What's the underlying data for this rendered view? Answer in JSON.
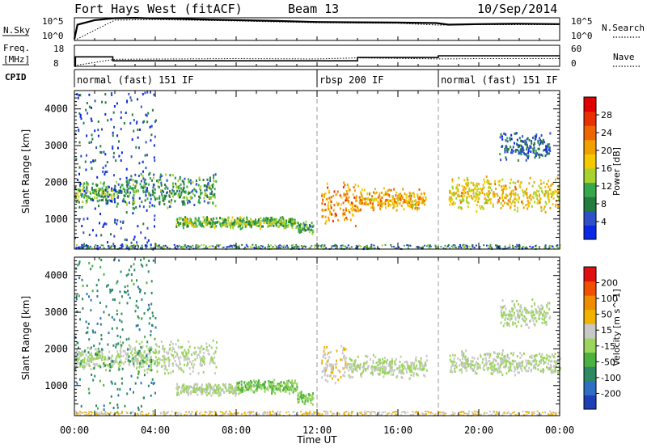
{
  "header": {
    "title": "Fort Hays West (fitACF)",
    "beam": "Beam 13",
    "date": "10/Sep/2014"
  },
  "top_panels": {
    "nsky": {
      "label": "N.Sky",
      "ytick_high": "10^5",
      "ytick_low": "10^0",
      "right_tick_high": "10^5",
      "right_tick_low": "10^0",
      "right_label": "N.Search",
      "right_legend_style": "dotted"
    },
    "freq": {
      "label_line1": "Freq.",
      "label_line2": "[MHz]",
      "ytick_high": "18",
      "ytick_low": "8",
      "right_tick_high": "60",
      "right_tick_low": "0",
      "right_label": "Nave",
      "right_legend_style": "dotted"
    },
    "cpid": {
      "label": "CPID",
      "segments": [
        {
          "text": "normal (fast) 151 IF",
          "start_hour": 0
        },
        {
          "text": "rbsp 200 IF",
          "start_hour": 12
        },
        {
          "text": "normal (fast) 151 IF",
          "start_hour": 18
        }
      ]
    }
  },
  "colorbars": {
    "power": {
      "label": "Power [dB]",
      "ticks": [
        "4",
        "8",
        "12",
        "16",
        "20",
        "24",
        "28"
      ],
      "colors": [
        "#0a28e6",
        "#3050c8",
        "#247d3c",
        "#36a84b",
        "#a8d22e",
        "#f5c800",
        "#f0a000",
        "#ee6600",
        "#e83000",
        "#e00000"
      ]
    },
    "velocity": {
      "label": "Velocity [m s^-1]",
      "ticks": [
        "200",
        "100",
        "50",
        "15",
        "-15",
        "-50",
        "-100",
        "-200"
      ],
      "colors": [
        "#1f3fb6",
        "#2f6fc3",
        "#2d8a63",
        "#4bb140",
        "#9bd55c",
        "#c8c8c8",
        "#f0b400",
        "#f08c00",
        "#f05000",
        "#e01010"
      ]
    }
  },
  "chart_data": [
    {
      "type": "line",
      "title": "",
      "ylabel": "N.Sky",
      "ylog": true,
      "ylim": [
        1,
        100000
      ],
      "x_unit": "hour UT",
      "series": [
        {
          "name": "N.Sky",
          "x": [
            0,
            0.15,
            1,
            2,
            3,
            4,
            5,
            6,
            8,
            10,
            12,
            14,
            16,
            17.9,
            18.5,
            20,
            22,
            24
          ],
          "values": [
            2,
            3000,
            30000,
            80000,
            95000,
            70000,
            60000,
            45000,
            30000,
            20000,
            12000,
            10000,
            9000,
            7000,
            3000,
            4000,
            5000,
            4000
          ]
        },
        {
          "name": "N.Search",
          "x": [
            0,
            2,
            4,
            8,
            12,
            16,
            18,
            20,
            24
          ],
          "values": [
            1,
            30000,
            40000,
            20000,
            8000,
            6000,
            2500,
            3000,
            3000
          ],
          "style": "dotted"
        }
      ]
    },
    {
      "type": "line",
      "title": "",
      "ylabel": "Freq. [MHz]",
      "ylim": [
        8,
        18
      ],
      "x_unit": "hour UT",
      "series": [
        {
          "name": "Freq.",
          "x": [
            0,
            0.05,
            0.05,
            1.9,
            1.9,
            14,
            14,
            18,
            18,
            24
          ],
          "values": [
            8,
            8,
            12.5,
            12.5,
            10.6,
            10.6,
            12.2,
            12.2,
            13,
            13
          ]
        },
        {
          "name": "Nave",
          "x": [
            0,
            2,
            8,
            12,
            14,
            18,
            20,
            24
          ],
          "values": [
            2,
            20,
            22,
            21,
            24,
            21,
            22,
            22
          ],
          "style": "dotted",
          "ylim": [
            0,
            60
          ]
        }
      ]
    },
    {
      "type": "heatmap",
      "title": "",
      "xlabel": "Time UT",
      "ylabel": "Slant Range [km]",
      "xlim": [
        0,
        24
      ],
      "ylim": [
        180,
        4500
      ],
      "xticks": [
        "00:00",
        "04:00",
        "08:00",
        "12:00",
        "16:00",
        "20:00",
        "00:00"
      ],
      "yticks": [
        1000,
        2000,
        3000,
        4000
      ],
      "colorbar": "Power [dB]",
      "clim": [
        0,
        32
      ],
      "features": [
        {
          "x": [
            0.0,
            2.0
          ],
          "range_km": [
            1400,
            2100
          ],
          "value": 12
        },
        {
          "x": [
            2.0,
            7.0
          ],
          "range_km": [
            1300,
            2300
          ],
          "value": 10
        },
        {
          "x": [
            5.0,
            11.0
          ],
          "range_km": [
            750,
            1100
          ],
          "value": 12
        },
        {
          "x": [
            11.0,
            11.8
          ],
          "range_km": [
            600,
            1000
          ],
          "value": 10
        },
        {
          "x": [
            12.2,
            14.0
          ],
          "range_km": [
            800,
            2100
          ],
          "value": 22
        },
        {
          "x": [
            14.0,
            17.4
          ],
          "range_km": [
            1200,
            1900
          ],
          "value": 20
        },
        {
          "x": [
            18.5,
            24.0
          ],
          "range_km": [
            1200,
            2200
          ],
          "value": 18
        },
        {
          "x": [
            21.0,
            23.5
          ],
          "range_km": [
            2600,
            3400
          ],
          "value": 6
        },
        {
          "x": [
            0.0,
            4.0
          ],
          "range_km": [
            200,
            4500
          ],
          "value": 4
        }
      ]
    },
    {
      "type": "heatmap",
      "title": "",
      "xlabel": "Time UT",
      "ylabel": "Slant Range [km]",
      "xlim": [
        0,
        24
      ],
      "ylim": [
        180,
        4500
      ],
      "xticks": [
        "00:00",
        "04:00",
        "08:00",
        "12:00",
        "16:00",
        "20:00",
        "00:00"
      ],
      "yticks": [
        1000,
        2000,
        3000,
        4000
      ],
      "colorbar": "Velocity [m s^-1]",
      "clim": [
        -200,
        200
      ],
      "features": [
        {
          "x": [
            0.0,
            2.0
          ],
          "range_km": [
            1400,
            2100
          ],
          "value": 0
        },
        {
          "x": [
            2.0,
            7.0
          ],
          "range_km": [
            1300,
            2300
          ],
          "value": 0
        },
        {
          "x": [
            5.0,
            8.0
          ],
          "range_km": [
            750,
            1100
          ],
          "value": 0
        },
        {
          "x": [
            8.0,
            11.0
          ],
          "range_km": [
            800,
            1200
          ],
          "value": -40
        },
        {
          "x": [
            11.0,
            11.8
          ],
          "range_km": [
            500,
            900
          ],
          "value": -40
        },
        {
          "x": [
            12.2,
            13.5
          ],
          "range_km": [
            900,
            2200
          ],
          "value": 30
        },
        {
          "x": [
            13.5,
            17.4
          ],
          "range_km": [
            1200,
            1900
          ],
          "value": 0
        },
        {
          "x": [
            18.5,
            24.0
          ],
          "range_km": [
            1300,
            2000
          ],
          "value": 0
        },
        {
          "x": [
            21.0,
            23.5
          ],
          "range_km": [
            2600,
            3400
          ],
          "value": 0
        },
        {
          "x": [
            0.0,
            4.0
          ],
          "range_km": [
            200,
            4500
          ],
          "value": -100
        }
      ]
    }
  ]
}
